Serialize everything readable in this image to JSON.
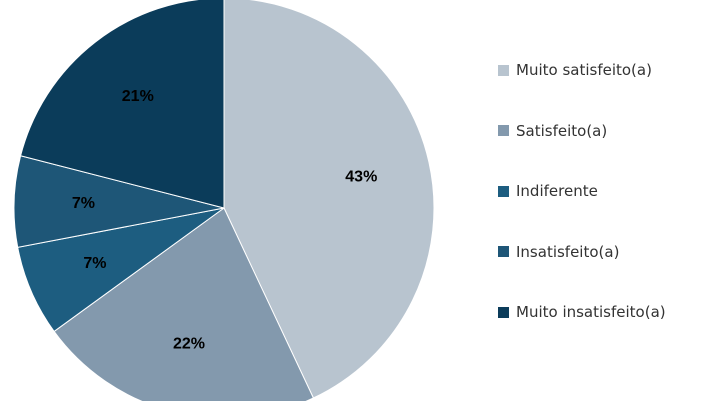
{
  "chart_data": {
    "type": "pie",
    "categories": [
      "Muito satisfeito(a)",
      "Satisfeito(a)",
      "Indiferente",
      "Insatisfeito(a)",
      "Muito insatisfeito(a)"
    ],
    "values": [
      43,
      22,
      7,
      7,
      21
    ],
    "value_labels": [
      "43%",
      "22%",
      "7%",
      "7%",
      "21%"
    ],
    "colors": [
      "#b8c4cf",
      "#8399ad",
      "#1d5d80",
      "#1e5677",
      "#0b3c5a"
    ],
    "start_angle": "12 o'clock",
    "direction": "clockwise",
    "legend_position": "right",
    "title": ""
  }
}
